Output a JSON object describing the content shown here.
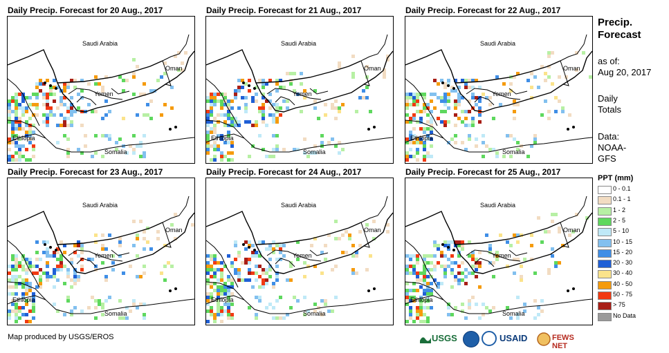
{
  "panels": [
    {
      "title": "Daily Precip. Forecast for 20 Aug., 2017"
    },
    {
      "title": "Daily Precip. Forecast for 21 Aug., 2017"
    },
    {
      "title": "Daily Precip. Forecast for 22 Aug., 2017"
    },
    {
      "title": "Daily Precip. Forecast for 23 Aug., 2017"
    },
    {
      "title": "Daily Precip. Forecast for 24 Aug., 2017"
    },
    {
      "title": "Daily Precip. Forecast for 25 Aug., 2017"
    }
  ],
  "map_labels": {
    "saudi": "Saudi Arabia",
    "oman": "Oman",
    "yemen": "Yemen",
    "ethiopia": "Ethiopia",
    "somalia": "Somalia"
  },
  "side": {
    "title_line1": "Precip.",
    "title_line2": "Forecast",
    "asof_line1": "as of:",
    "asof_line2": "Aug 20, 2017",
    "totals_line1": "Daily",
    "totals_line2": "Totals",
    "data_line1": "Data:",
    "data_line2": "NOAA-",
    "data_line3": "GFS"
  },
  "legend": {
    "title": "PPT (mm)",
    "items": [
      {
        "label": "0 - 0.1",
        "color": "#ffffff"
      },
      {
        "label": "0.1 - 1",
        "color": "#f2dcc2"
      },
      {
        "label": "1 - 2",
        "color": "#b7f0a4"
      },
      {
        "label": "2 - 5",
        "color": "#5ed85e"
      },
      {
        "label": "5 - 10",
        "color": "#bfe9f7"
      },
      {
        "label": "10 - 15",
        "color": "#82c0ef"
      },
      {
        "label": "15 - 20",
        "color": "#3f8ee6"
      },
      {
        "label": "20 - 30",
        "color": "#1f5fd6"
      },
      {
        "label": "30 - 40",
        "color": "#fbe38b"
      },
      {
        "label": "40 - 50",
        "color": "#f59b0d"
      },
      {
        "label": "50 - 75",
        "color": "#f23a12"
      },
      {
        "label": "> 75",
        "color": "#a81e16"
      },
      {
        "label": "No Data",
        "color": "#9a9a9a"
      }
    ]
  },
  "credit": "Map produced by USGS/EROS",
  "logos": {
    "usgs": "USGS",
    "usaid": "USAID",
    "fews": "FEWS NET"
  }
}
